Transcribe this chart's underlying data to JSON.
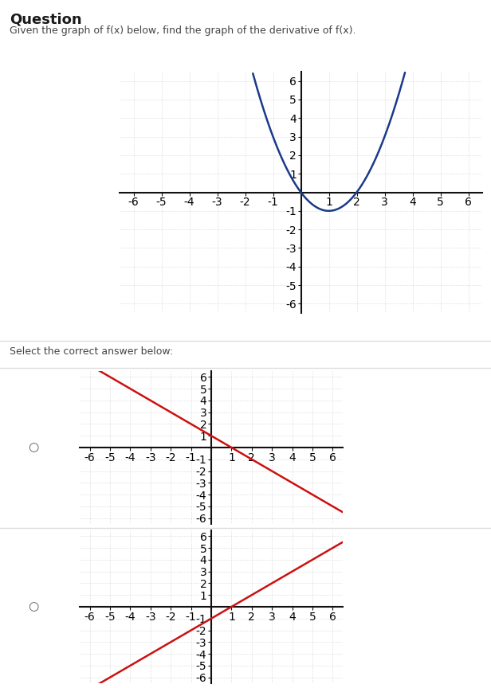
{
  "title": "Question",
  "subtitle": "Given the graph of f(x) below, find the graph of the derivative of f(x).",
  "select_text": "Select the correct answer below:",
  "bg_color": "#ffffff",
  "grid_color": "#c8c8c8",
  "axis_color": "#111111",
  "tick_label_color": "#333333",
  "main_curve_color": "#1a3a8a",
  "main_curve_linewidth": 1.8,
  "answer_line_color": "#cc1111",
  "answer_line_linewidth": 1.8,
  "xlim": [
    -6.5,
    6.5
  ],
  "ylim": [
    -6.5,
    6.5
  ],
  "parabola_vertex_x": 1,
  "parabola_vertex_y": -1,
  "parabola_a": 1,
  "answer1_slope": -1,
  "answer1_intercept": 1,
  "answer2_slope": 1,
  "answer2_intercept": -1,
  "sep_color": "#dddddd",
  "radio_color": "#555555",
  "title_fontsize": 13,
  "subtitle_fontsize": 9,
  "select_fontsize": 9,
  "tick_fontsize": 7
}
